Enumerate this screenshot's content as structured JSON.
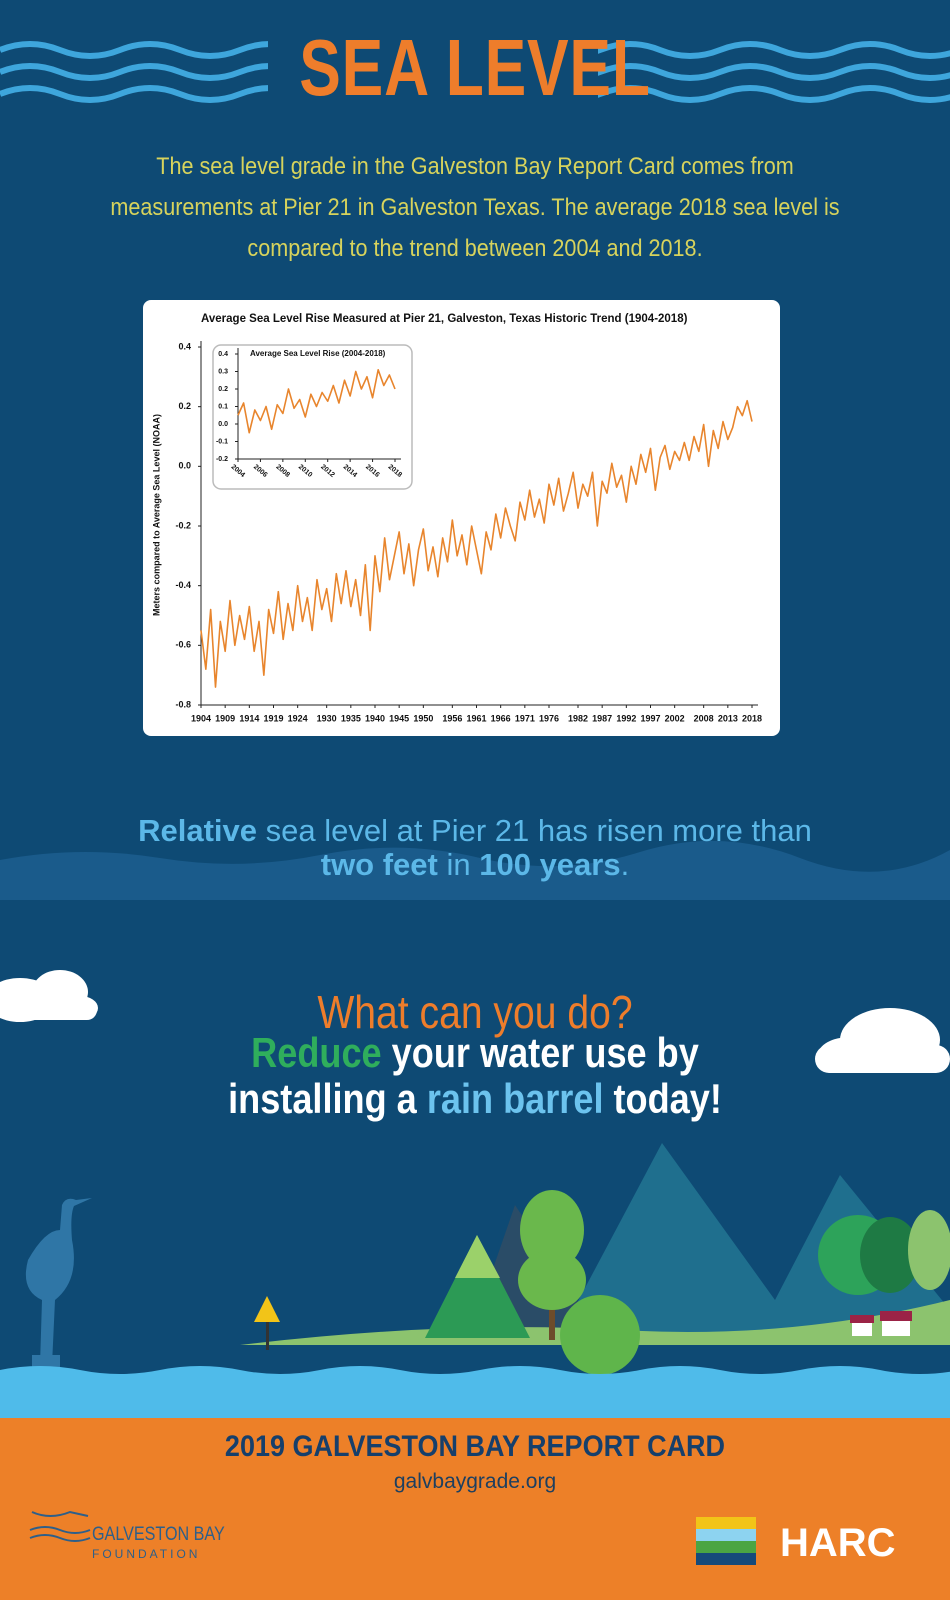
{
  "title": "SEA LEVEL",
  "intro": "The sea level grade in the Galveston Bay Report Card comes from measurements at Pier 21 in Galveston Texas. The average 2018 sea level is compared to the trend between 2004 and 2018.",
  "chart_data": [
    {
      "type": "line",
      "title": "Average Sea Level Rise Measured at Pier 21, Galveston, Texas Historic Trend (1904-2018)",
      "y_label": "Meters compared to Average Sea Level (NOAA)",
      "color": "#e8852d",
      "xlim": [
        1904,
        2018
      ],
      "xticks": [
        1904,
        1909,
        1914,
        1919,
        1924,
        1930,
        1935,
        1940,
        1945,
        1950,
        1956,
        1961,
        1966,
        1971,
        1976,
        1982,
        1987,
        1992,
        1997,
        2002,
        2008,
        2013,
        2018
      ],
      "ylim": [
        -0.8,
        0.4
      ],
      "yticks": [
        0.4,
        0.2,
        {
          "value": 0,
          "label": "0.0"
        },
        -0.2,
        -0.4,
        -0.6,
        -0.8
      ],
      "x": [
        1904,
        1905,
        1906,
        1907,
        1908,
        1909,
        1910,
        1911,
        1912,
        1913,
        1914,
        1915,
        1916,
        1917,
        1918,
        1919,
        1920,
        1921,
        1922,
        1923,
        1924,
        1925,
        1926,
        1927,
        1928,
        1929,
        1930,
        1931,
        1932,
        1933,
        1934,
        1935,
        1936,
        1937,
        1938,
        1939,
        1940,
        1941,
        1942,
        1943,
        1944,
        1945,
        1946,
        1947,
        1948,
        1949,
        1950,
        1951,
        1952,
        1953,
        1954,
        1955,
        1956,
        1957,
        1958,
        1959,
        1960,
        1961,
        1962,
        1963,
        1964,
        1965,
        1966,
        1967,
        1968,
        1969,
        1970,
        1971,
        1972,
        1973,
        1974,
        1975,
        1976,
        1977,
        1978,
        1979,
        1980,
        1981,
        1982,
        1983,
        1984,
        1985,
        1986,
        1987,
        1988,
        1989,
        1990,
        1991,
        1992,
        1993,
        1994,
        1995,
        1996,
        1997,
        1998,
        1999,
        2000,
        2001,
        2002,
        2003,
        2004,
        2005,
        2006,
        2007,
        2008,
        2009,
        2010,
        2011,
        2012,
        2013,
        2014,
        2015,
        2016,
        2017,
        2018
      ],
      "values": [
        -0.55,
        -0.68,
        -0.48,
        -0.74,
        -0.52,
        -0.62,
        -0.45,
        -0.6,
        -0.5,
        -0.58,
        -0.47,
        -0.62,
        -0.52,
        -0.7,
        -0.48,
        -0.56,
        -0.42,
        -0.58,
        -0.46,
        -0.55,
        -0.4,
        -0.52,
        -0.44,
        -0.55,
        -0.38,
        -0.48,
        -0.41,
        -0.52,
        -0.36,
        -0.46,
        -0.35,
        -0.47,
        -0.38,
        -0.5,
        -0.33,
        -0.55,
        -0.3,
        -0.42,
        -0.24,
        -0.38,
        -0.3,
        -0.22,
        -0.36,
        -0.26,
        -0.4,
        -0.28,
        -0.21,
        -0.35,
        -0.27,
        -0.37,
        -0.24,
        -0.32,
        -0.18,
        -0.3,
        -0.23,
        -0.33,
        -0.2,
        -0.28,
        -0.36,
        -0.22,
        -0.28,
        -0.16,
        -0.24,
        -0.14,
        -0.2,
        -0.25,
        -0.12,
        -0.18,
        -0.08,
        -0.17,
        -0.11,
        -0.19,
        -0.06,
        -0.13,
        -0.04,
        -0.15,
        -0.09,
        -0.02,
        -0.14,
        -0.06,
        -0.1,
        -0.02,
        -0.2,
        -0.05,
        -0.09,
        0.01,
        -0.07,
        -0.03,
        -0.12,
        0.0,
        -0.06,
        0.04,
        -0.02,
        0.06,
        -0.08,
        0.03,
        0.07,
        -0.01,
        0.05,
        0.02,
        0.08,
        0.02,
        0.1,
        0.05,
        0.14,
        0.0,
        0.12,
        0.06,
        0.15,
        0.09,
        0.13,
        0.2,
        0.17,
        0.22,
        0.15
      ]
    },
    {
      "type": "line",
      "title": "Average Sea Level Rise (2004-2018)",
      "color": "#e8852d",
      "xlim": [
        2004,
        2018
      ],
      "xticks": [
        2004,
        2006,
        2008,
        2010,
        2012,
        2014,
        2016,
        2018
      ],
      "ylim": [
        -0.2,
        0.4
      ],
      "yticks": [
        0.4,
        0.3,
        0.2,
        0.1,
        {
          "value": 0,
          "label": "0.0"
        },
        -0.1,
        -0.2
      ],
      "x": [
        2004,
        2004.5,
        2005,
        2005.5,
        2006,
        2006.5,
        2007,
        2007.5,
        2008,
        2008.5,
        2009,
        2009.5,
        2010,
        2010.5,
        2011,
        2011.5,
        2012,
        2012.5,
        2013,
        2013.5,
        2014,
        2014.5,
        2015,
        2015.5,
        2016,
        2016.5,
        2017,
        2017.5,
        2018
      ],
      "values": [
        0.05,
        0.12,
        -0.05,
        0.08,
        0.02,
        0.1,
        -0.03,
        0.11,
        0.06,
        0.2,
        0.09,
        0.14,
        0.04,
        0.17,
        0.1,
        0.18,
        0.13,
        0.22,
        0.12,
        0.25,
        0.16,
        0.3,
        0.2,
        0.27,
        0.15,
        0.31,
        0.22,
        0.28,
        0.2
      ]
    }
  ],
  "callout": [
    "Relative",
    " sea level at Pier 21 has risen more than ",
    "two feet",
    " in ",
    "100 years",
    "."
  ],
  "action": {
    "question": "What can you do?",
    "line": [
      "Reduce",
      " your water use by installing a ",
      "rain barrel",
      " today!"
    ]
  },
  "footer": {
    "title": "2019 GALVESTON BAY REPORT CARD",
    "url": "galvbaygrade.org",
    "logo_left": [
      "GALVESTON BAY",
      "FOUNDATION"
    ],
    "logo_right": "HARC"
  }
}
